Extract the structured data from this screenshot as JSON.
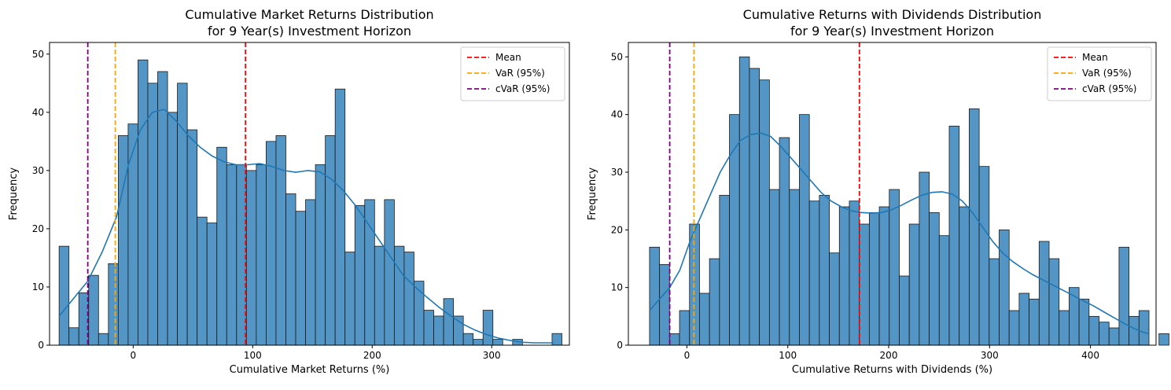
{
  "chart_data": [
    {
      "type": "histogram",
      "title_line1": "Cumulative Market Returns Distribution",
      "title_line2": "for 9 Year(s) Investment Horizon",
      "xlabel": "Cumulative Market Returns (%)",
      "ylabel": "Frequency",
      "xlim": [
        -70,
        365
      ],
      "ylim": [
        0,
        52
      ],
      "xticks": [
        0,
        100,
        200,
        300
      ],
      "yticks": [
        0,
        10,
        20,
        30,
        40,
        50
      ],
      "bin_start": -62,
      "bin_width": 8.25,
      "counts": [
        17,
        3,
        9,
        12,
        2,
        14,
        36,
        38,
        49,
        45,
        47,
        40,
        45,
        37,
        22,
        21,
        34,
        31,
        31,
        30,
        31,
        35,
        36,
        26,
        23,
        25,
        31,
        36,
        44,
        16,
        24,
        25,
        17,
        25,
        17,
        16,
        11,
        6,
        5,
        8,
        5,
        2,
        1,
        6,
        1,
        0,
        1,
        0,
        0,
        0,
        2
      ],
      "kde": [
        [
          -62,
          5
        ],
        [
          -50,
          8
        ],
        [
          -38,
          11
        ],
        [
          -26,
          16
        ],
        [
          -14,
          22
        ],
        [
          -4,
          31
        ],
        [
          6,
          37
        ],
        [
          16,
          40
        ],
        [
          26,
          40.5
        ],
        [
          36,
          38.5
        ],
        [
          46,
          36
        ],
        [
          56,
          34
        ],
        [
          66,
          32.5
        ],
        [
          76,
          31.5
        ],
        [
          86,
          31
        ],
        [
          96,
          31
        ],
        [
          106,
          31.2
        ],
        [
          116,
          30.7
        ],
        [
          126,
          30
        ],
        [
          136,
          29.7
        ],
        [
          146,
          30
        ],
        [
          156,
          29.8
        ],
        [
          166,
          28.5
        ],
        [
          176,
          26.5
        ],
        [
          186,
          24
        ],
        [
          196,
          21
        ],
        [
          206,
          18
        ],
        [
          216,
          15
        ],
        [
          226,
          12
        ],
        [
          236,
          10
        ],
        [
          246,
          8.2
        ],
        [
          256,
          6.5
        ],
        [
          266,
          5
        ],
        [
          276,
          3.6
        ],
        [
          286,
          2.6
        ],
        [
          296,
          1.8
        ],
        [
          306,
          1.2
        ],
        [
          316,
          0.8
        ],
        [
          326,
          0.5
        ],
        [
          336,
          0.4
        ],
        [
          346,
          0.4
        ],
        [
          352,
          0.4
        ]
      ],
      "vlines": [
        {
          "name": "Mean",
          "x": 94,
          "color": "#ff0000"
        },
        {
          "name": "VaR (95%)",
          "x": -15,
          "color": "#ffa500"
        },
        {
          "name": "cVaR (95%)",
          "x": -38,
          "color": "#800080"
        }
      ],
      "legend_position": "top-right",
      "bar_color": "#4a90c2",
      "kde_color": "#1f77b4"
    },
    {
      "type": "histogram",
      "title_line1": "Cumulative Returns with Dividends Distribution",
      "title_line2": "for 9 Year(s) Investment Horizon",
      "xlabel": "Cumulative Returns with Dividends (%)",
      "ylabel": "Frequency",
      "xlim": [
        -58,
        465
      ],
      "ylim": [
        0,
        52.5
      ],
      "xticks": [
        0,
        100,
        200,
        300,
        400
      ],
      "yticks": [
        0,
        10,
        20,
        30,
        40,
        50
      ],
      "bin_start": -37,
      "bin_width": 9.9,
      "counts": [
        17,
        14,
        2,
        6,
        21,
        9,
        15,
        26,
        40,
        50,
        48,
        46,
        27,
        36,
        27,
        40,
        25,
        26,
        16,
        24,
        25,
        21,
        23,
        24,
        27,
        12,
        21,
        30,
        23,
        19,
        38,
        24,
        41,
        31,
        15,
        20,
        6,
        9,
        8,
        18,
        15,
        6,
        10,
        8,
        5,
        4,
        3,
        17,
        5,
        6,
        0,
        2
      ],
      "kde": [
        [
          -37,
          6
        ],
        [
          -27,
          8
        ],
        [
          -17,
          10
        ],
        [
          -7,
          13
        ],
        [
          3,
          18
        ],
        [
          13,
          22
        ],
        [
          23,
          26
        ],
        [
          33,
          30
        ],
        [
          43,
          33
        ],
        [
          53,
          35.5
        ],
        [
          63,
          36.5
        ],
        [
          73,
          36.8
        ],
        [
          83,
          36.2
        ],
        [
          93,
          34.5
        ],
        [
          103,
          32.5
        ],
        [
          113,
          30.5
        ],
        [
          123,
          28.5
        ],
        [
          133,
          26.5
        ],
        [
          143,
          25
        ],
        [
          153,
          24
        ],
        [
          163,
          23.3
        ],
        [
          173,
          23
        ],
        [
          183,
          22.9
        ],
        [
          193,
          23
        ],
        [
          203,
          23.5
        ],
        [
          213,
          24.3
        ],
        [
          223,
          25.2
        ],
        [
          233,
          26
        ],
        [
          243,
          26.5
        ],
        [
          253,
          26.6
        ],
        [
          263,
          26.2
        ],
        [
          273,
          25
        ],
        [
          283,
          23
        ],
        [
          293,
          20.5
        ],
        [
          303,
          18
        ],
        [
          313,
          16
        ],
        [
          323,
          14.5
        ],
        [
          333,
          13.3
        ],
        [
          343,
          12.2
        ],
        [
          353,
          11.3
        ],
        [
          363,
          10.4
        ],
        [
          373,
          9.5
        ],
        [
          383,
          8.6
        ],
        [
          393,
          7.7
        ],
        [
          403,
          6.8
        ],
        [
          413,
          5.8
        ],
        [
          423,
          4.8
        ],
        [
          433,
          3.8
        ],
        [
          443,
          2.9
        ],
        [
          453,
          2.2
        ],
        [
          458,
          2
        ]
      ],
      "vlines": [
        {
          "name": "Mean",
          "x": 171,
          "color": "#ff0000"
        },
        {
          "name": "VaR (95%)",
          "x": 7,
          "color": "#ffa500"
        },
        {
          "name": "cVaR (95%)",
          "x": -17,
          "color": "#800080"
        }
      ],
      "legend_position": "top-right",
      "bar_color": "#4a90c2",
      "kde_color": "#1f77b4"
    }
  ]
}
